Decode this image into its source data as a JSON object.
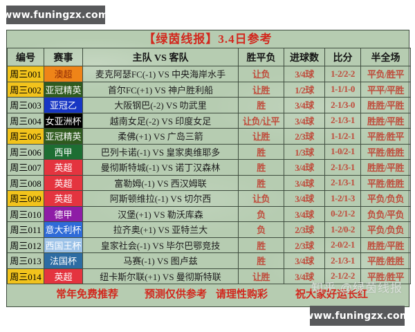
{
  "title": "【绿茵线报】3.4日参考",
  "watermarks": {
    "top": "www.funingzx.com",
    "bottom_right": "www.funingzx.com",
    "overlay": "知乎 @绿茵线报"
  },
  "table": {
    "columns": [
      "编号",
      "赛事",
      "主队 VS 客队",
      "胜平负",
      "进球数",
      "比分",
      "半全场"
    ],
    "rows": [
      {
        "id": "周三001",
        "id_bg": "#f2c31c",
        "league": "澳超",
        "league_bg": "#ef8418",
        "league_fg": "#8f2a06",
        "match": "麦克阿瑟FC(-1) VS 中央海岸水手",
        "wdl": "让负",
        "goals": "3/4球",
        "score": "1-2/2-2",
        "half": "平负/胜平"
      },
      {
        "id": "周三002",
        "id_bg": "#f2c31c",
        "league": "亚冠精英",
        "league_bg": "#2e5a1e",
        "league_fg": "#ffffff",
        "match": "首尔FC(+1) VS 神户胜利船",
        "wdl": "让胜",
        "goals": "1/2球",
        "score": "1-1/1-0",
        "half": "平平/平胜"
      },
      {
        "id": "周三003",
        "id_bg": "",
        "league": "亚冠乙",
        "league_bg": "#1736c4",
        "league_fg": "#ffffff",
        "match": "大阪钢巴(-2) VS 叻武里",
        "wdl": "胜",
        "goals": "3/4球",
        "score": "2-1/3-0",
        "half": "胜胜/平胜"
      },
      {
        "id": "周三004",
        "id_bg": "",
        "league": "女亚洲杯",
        "league_bg": "#000000",
        "league_fg": "#ffffff",
        "match": "越南女足(-2) VS 印度女足",
        "wdl": "让负/让平",
        "goals": "3/4球",
        "score": "2-1/3-1",
        "half": "胜胜/平胜"
      },
      {
        "id": "周三005",
        "id_bg": "#f2c31c",
        "league": "亚冠精英",
        "league_bg": "#2e5a1e",
        "league_fg": "#ffffff",
        "match": "柔佛(+1) VS 广岛三箭",
        "wdl": "让胜",
        "goals": "2/3球",
        "score": "1-1/2-1",
        "half": "平胜/胜平"
      },
      {
        "id": "周三006",
        "id_bg": "",
        "league": "西甲",
        "league_bg": "#1d6e33",
        "league_fg": "#ffffff",
        "match": "巴列卡诺(-1) VS 皇家奥维耶多",
        "wdl": "胜",
        "goals": "1/3球",
        "score": "1-0/2-1",
        "half": "平胜/胜胜"
      },
      {
        "id": "周三007",
        "id_bg": "",
        "league": "英超",
        "league_bg": "#e4343f",
        "league_fg": "#ffffff",
        "match": "曼彻斯特城(-1) VS 诺丁汉森林",
        "wdl": "胜",
        "goals": "3/4球",
        "score": "2-1/3-1",
        "half": "胜胜/平胜"
      },
      {
        "id": "周三008",
        "id_bg": "",
        "league": "英超",
        "league_bg": "#e4343f",
        "league_fg": "#ffffff",
        "match": "富勒姆(-1) VS 西汉姆联",
        "wdl": "胜",
        "goals": "3/4球",
        "score": "2-1/3-1",
        "half": "平胜/胜胜"
      },
      {
        "id": "周三009",
        "id_bg": "#f2c31c",
        "league": "英超",
        "league_bg": "#e4343f",
        "league_fg": "#ffffff",
        "match": "阿斯顿维拉(-1) VS 切尔西",
        "wdl": "让负",
        "goals": "3/4球",
        "score": "1-2/1-3",
        "half": "平负/负负"
      },
      {
        "id": "周三010",
        "id_bg": "",
        "league": "德甲",
        "league_bg": "#8e1ca6",
        "league_fg": "#ffffff",
        "match": "汉堡(+1) VS 勒沃库森",
        "wdl": "负",
        "goals": "3/4球",
        "score": "0-2/1-2",
        "half": "负负/平负"
      },
      {
        "id": "周三011",
        "id_bg": "",
        "league": "意大利杯",
        "league_bg": "#2f6bd8",
        "league_fg": "#ffffff",
        "match": "拉齐奥(+1) VS 亚特兰大",
        "wdl": "负",
        "goals": "2/3球",
        "score": "1-2/0-2",
        "half": "平负/负负"
      },
      {
        "id": "周三012",
        "id_bg": "",
        "league": "西国王杯",
        "league_bg": "#9cc2e8",
        "league_fg": "#ffffff",
        "match": "皇家社会(-1) VS 毕尔巴鄂竞技",
        "wdl": "胜",
        "goals": "2/3球",
        "score": "2-0/2-1",
        "half": "胜胜/平胜"
      },
      {
        "id": "周三013",
        "id_bg": "",
        "league": "法国杯",
        "league_bg": "#2d6ca3",
        "league_fg": "#ffffff",
        "match": "马赛(-1) VS 图卢兹",
        "wdl": "胜",
        "goals": "3/4球",
        "score": "2-1/3-1",
        "half": "平胜/胜胜"
      },
      {
        "id": "周三014",
        "id_bg": "#f2c31c",
        "league": "英超",
        "league_bg": "#e4343f",
        "league_fg": "#ffffff",
        "match": "纽卡斯尔联(+1) VS 曼彻斯特联",
        "wdl": "让胜",
        "goals": "3/4球",
        "score": "2-1/2-2",
        "half": "平胜/胜平"
      }
    ]
  },
  "footer": {
    "items": [
      "常年免费推荐",
      "预测仅供参考",
      "请理性购彩",
      "祝大家好运长红"
    ]
  },
  "colors": {
    "page_bg": "#ffffff",
    "board_bg": "#b6ccb1",
    "grid_line": "#3f4d3f",
    "title_text": "#d2281e",
    "prediction_text": "#bf4b3b",
    "footer_text": "#d2281e",
    "highlight_yellow": "#f2c31c",
    "watermark_box": "#58595b"
  }
}
